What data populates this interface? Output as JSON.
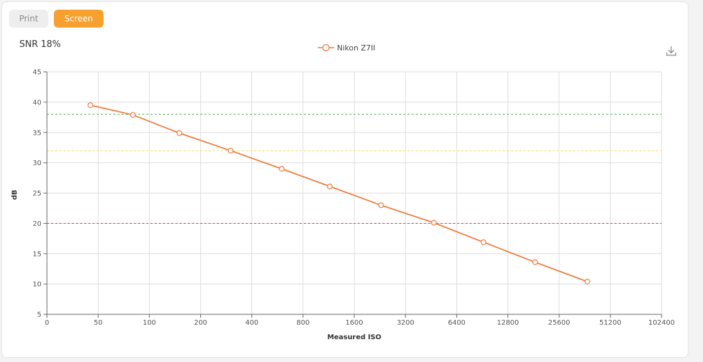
{
  "toggle": {
    "print_label": "Print",
    "screen_label": "Screen",
    "selected": "Screen"
  },
  "download_icon": "download-icon",
  "chart_data": {
    "type": "line",
    "title": "SNR 18%",
    "xlabel": "Measured ISO",
    "ylabel": "dB",
    "x_scale": "log2",
    "x_ticks": [
      "0",
      "50",
      "100",
      "200",
      "400",
      "800",
      "1600",
      "3200",
      "6400",
      "12800",
      "25600",
      "51200",
      "102400"
    ],
    "y_ticks": [
      "5",
      "10",
      "15",
      "20",
      "25",
      "30",
      "35",
      "40",
      "45"
    ],
    "ylim": [
      5,
      45
    ],
    "grid": true,
    "legend": "top-center",
    "series": [
      {
        "name": "Nikon Z7II",
        "color": "#f07a3c",
        "points": [
          {
            "x": 45,
            "y": 39.5
          },
          {
            "x": 80,
            "y": 37.9
          },
          {
            "x": 150,
            "y": 34.9
          },
          {
            "x": 300,
            "y": 32.0
          },
          {
            "x": 600,
            "y": 29.0
          },
          {
            "x": 1150,
            "y": 26.1
          },
          {
            "x": 2300,
            "y": 23.0
          },
          {
            "x": 4700,
            "y": 20.1
          },
          {
            "x": 9200,
            "y": 16.9
          },
          {
            "x": 18500,
            "y": 13.6
          },
          {
            "x": 37500,
            "y": 10.4
          }
        ]
      }
    ],
    "reference_lines": [
      {
        "y": 38,
        "color": "#4caf50"
      },
      {
        "y": 32,
        "color": "#ffd54f"
      },
      {
        "y": 20,
        "color": "#e53935"
      }
    ]
  }
}
